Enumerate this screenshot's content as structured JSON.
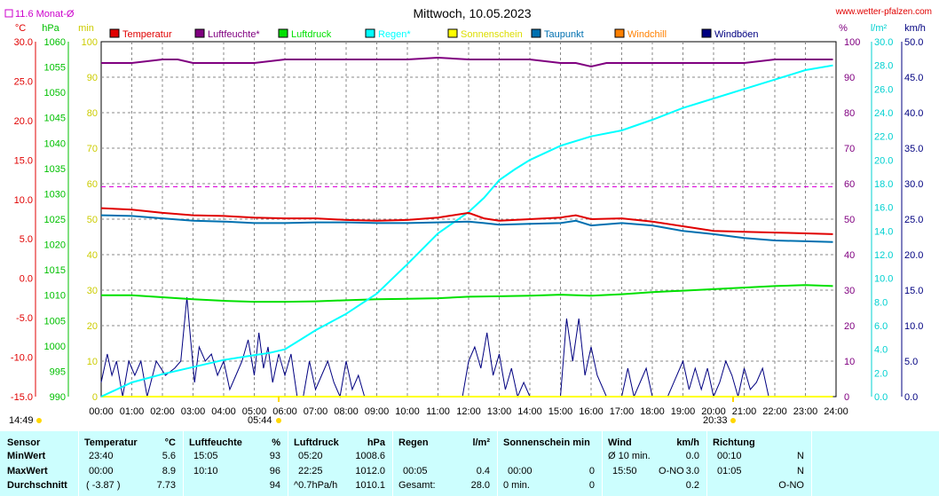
{
  "header": {
    "title": "Mittwoch, 10.05.2023",
    "website": "www.wetter-pfalzen.com",
    "monthly_avg_label": "11.6 Monat-Ø"
  },
  "units_left": [
    "°C",
    "hPa",
    "min"
  ],
  "units_right": [
    "%",
    "l/m²",
    "km/h"
  ],
  "legend": [
    {
      "label": "Temperatur",
      "color": "#e00000"
    },
    {
      "label": "Luftfeuchte*",
      "color": "#800080"
    },
    {
      "label": "Luftdruck",
      "color": "#00e000"
    },
    {
      "label": "Regen*",
      "color": "#00ffff"
    },
    {
      "label": "Sonnenschein",
      "color": "#ffff00"
    },
    {
      "label": "Taupunkt",
      "color": "#0070b0"
    },
    {
      "label": "Windchill",
      "color": "#ff8000"
    },
    {
      "label": "Windböen",
      "color": "#000080"
    }
  ],
  "axis_ticks": {
    "temp": [
      "30.0",
      "25.0",
      "20.0",
      "15.0",
      "10.0",
      "5.0",
      "0.0",
      "-5.0",
      "-10.0",
      "-15.0"
    ],
    "hpa": [
      "1060",
      "1055",
      "1050",
      "1045",
      "1040",
      "1035",
      "1030",
      "1025",
      "1020",
      "1015",
      "1010",
      "1005",
      "1000",
      "995",
      "990"
    ],
    "min": [
      "100",
      "90",
      "80",
      "70",
      "60",
      "50",
      "40",
      "30",
      "20",
      "10",
      "0"
    ],
    "pct": [
      "100",
      "90",
      "80",
      "70",
      "60",
      "50",
      "40",
      "30",
      "20",
      "10",
      "0"
    ],
    "rain": [
      "30.0",
      "28.0",
      "26.0",
      "24.0",
      "22.0",
      "20.0",
      "18.0",
      "16.0",
      "14.0",
      "12.0",
      "10.0",
      "8.0",
      "6.0",
      "4.0",
      "2.0",
      "0.0"
    ],
    "kmh": [
      "50.0",
      "45.0",
      "40.0",
      "35.0",
      "30.0",
      "25.0",
      "20.0",
      "15.0",
      "10.0",
      "5.0",
      "0.0"
    ],
    "time": [
      "00:00",
      "01:00",
      "02:00",
      "03:00",
      "04:00",
      "05:00",
      "06:00",
      "07:00",
      "08:00",
      "09:00",
      "10:00",
      "11:00",
      "12:00",
      "13:00",
      "14:00",
      "15:00",
      "16:00",
      "17:00",
      "18:00",
      "19:00",
      "20:00",
      "21:00",
      "22:00",
      "23:00",
      "24:00"
    ]
  },
  "sun_events": {
    "timezone_label": "14:49",
    "sunrise": "05:44",
    "sunset": "20:33"
  },
  "chart_data": {
    "type": "line",
    "title": "Mittwoch, 10.05.2023",
    "x_range": [
      "00:00",
      "24:00"
    ],
    "grid": true,
    "legend_position": "top",
    "reference_line": {
      "name": "11.6 Monat-Ø",
      "unit": "°C",
      "value": 11.6
    },
    "series": [
      {
        "name": "Temperatur",
        "unit": "°C",
        "axis": "temp",
        "x": [
          0,
          1,
          2,
          3,
          4,
          5,
          6,
          7,
          8,
          9,
          10,
          11,
          12,
          12.5,
          13,
          14,
          15,
          15.5,
          16,
          17,
          18,
          19,
          20,
          21,
          22,
          23,
          23.9
        ],
        "y": [
          8.9,
          8.7,
          8.3,
          8.0,
          7.9,
          7.7,
          7.6,
          7.6,
          7.4,
          7.3,
          7.4,
          7.7,
          8.3,
          7.6,
          7.3,
          7.5,
          7.7,
          8.0,
          7.5,
          7.6,
          7.2,
          6.6,
          6.0,
          5.9,
          5.8,
          5.7,
          5.6
        ]
      },
      {
        "name": "Luftfeuchte*",
        "unit": "%",
        "axis": "pct",
        "x": [
          0,
          1,
          2,
          2.5,
          3,
          4,
          5,
          6,
          7,
          8,
          9,
          10,
          11,
          12,
          13,
          14,
          15,
          15.5,
          16,
          16.5,
          17,
          18,
          19,
          20,
          21,
          22,
          23,
          23.9
        ],
        "y": [
          94,
          94,
          95,
          95,
          94,
          94,
          94,
          95,
          95,
          95,
          95,
          95,
          95.5,
          95,
          95,
          95,
          94,
          94,
          93,
          94,
          94,
          94,
          94,
          94,
          94,
          95,
          95,
          95
        ]
      },
      {
        "name": "Luftdruck",
        "unit": "hPa",
        "axis": "hpa",
        "x": [
          0,
          1,
          2,
          3,
          4,
          5,
          6,
          7,
          8,
          9,
          10,
          11,
          12,
          13,
          14,
          15,
          16,
          17,
          18,
          19,
          20,
          21,
          22,
          23,
          23.9
        ],
        "y": [
          1010.0,
          1010.0,
          1009.6,
          1009.2,
          1008.9,
          1008.7,
          1008.7,
          1008.8,
          1009.0,
          1009.2,
          1009.3,
          1009.4,
          1009.7,
          1009.8,
          1009.9,
          1010.1,
          1009.9,
          1010.2,
          1010.6,
          1010.9,
          1011.2,
          1011.5,
          1011.8,
          1012.0,
          1011.8
        ]
      },
      {
        "name": "Regen*",
        "unit": "l/m²",
        "axis": "rain",
        "x": [
          0,
          0.5,
          1,
          2,
          3,
          4,
          5,
          5.5,
          6,
          6.5,
          7,
          8,
          9,
          10,
          11,
          12,
          12.5,
          13,
          13.5,
          14,
          15,
          16,
          17,
          18,
          19,
          20,
          21,
          22,
          23,
          23.9
        ],
        "y": [
          0,
          0.6,
          1.2,
          1.9,
          2.5,
          3.1,
          3.5,
          3.7,
          4.0,
          4.8,
          5.6,
          7.0,
          8.7,
          11.2,
          13.8,
          15.6,
          16.8,
          18.3,
          19.2,
          20.0,
          21.2,
          22.0,
          22.5,
          23.4,
          24.4,
          25.2,
          26.0,
          26.8,
          27.6,
          28.0
        ]
      },
      {
        "name": "Sonnenschein",
        "unit": "min",
        "axis": "min",
        "x": [
          0,
          23.9
        ],
        "y": [
          0,
          0
        ]
      },
      {
        "name": "Taupunkt",
        "unit": "°C",
        "axis": "temp",
        "x": [
          0,
          1,
          2,
          3,
          4,
          5,
          6,
          7,
          8,
          9,
          10,
          11,
          12,
          12.5,
          13,
          14,
          15,
          15.5,
          16,
          17,
          18,
          19,
          20,
          21,
          22,
          23,
          23.9
        ],
        "y": [
          8.0,
          7.9,
          7.6,
          7.3,
          7.2,
          7.0,
          7.0,
          7.1,
          7.1,
          7.0,
          7.0,
          7.1,
          7.2,
          7.0,
          6.8,
          6.9,
          7.0,
          7.3,
          6.7,
          7.0,
          6.7,
          6.0,
          5.6,
          5.1,
          4.8,
          4.7,
          4.6
        ]
      },
      {
        "name": "Windböen",
        "unit": "km/h",
        "axis": "kmh",
        "x": [
          0,
          0.2,
          0.35,
          0.5,
          0.7,
          0.9,
          1.1,
          1.3,
          1.5,
          1.8,
          2.1,
          2.4,
          2.6,
          2.8,
          2.9,
          3.05,
          3.2,
          3.4,
          3.6,
          3.8,
          4.0,
          4.2,
          4.4,
          4.6,
          4.8,
          5.0,
          5.15,
          5.3,
          5.45,
          5.6,
          5.8,
          6.0,
          6.2,
          6.4,
          6.6,
          6.8,
          7.0,
          7.2,
          7.4,
          7.6,
          7.8,
          8.0,
          8.2,
          8.4,
          8.6,
          9.0,
          11.8,
          12.0,
          12.2,
          12.4,
          12.6,
          12.8,
          13.0,
          13.2,
          13.4,
          13.6,
          13.8,
          14.0,
          15.0,
          15.2,
          15.4,
          15.6,
          15.8,
          16.0,
          16.2,
          16.5,
          17.0,
          17.2,
          17.4,
          17.6,
          17.8,
          18.0,
          18.5,
          19.0,
          19.2,
          19.4,
          19.6,
          19.8,
          20.0,
          20.2,
          20.4,
          20.6,
          20.8,
          21.0,
          21.2,
          21.4,
          21.6,
          21.8,
          22.0
        ],
        "y": [
          2,
          6,
          3,
          5,
          0,
          5,
          3,
          5,
          0,
          5,
          3,
          4,
          5,
          14,
          9,
          2,
          7,
          5,
          6,
          3,
          5,
          1,
          3,
          5,
          8,
          3,
          9,
          4,
          7,
          2,
          6,
          3,
          6,
          0,
          0,
          5,
          1,
          3,
          5,
          2,
          0,
          5,
          1,
          3,
          0,
          0,
          0,
          5,
          7,
          4,
          9,
          3,
          6,
          1,
          4,
          0,
          2,
          0,
          0,
          11,
          5,
          11,
          3,
          7,
          3,
          0,
          0,
          4,
          0,
          2,
          4,
          0,
          0,
          5,
          1,
          4,
          1,
          4,
          0,
          2,
          5,
          3,
          0,
          4,
          1,
          2,
          4,
          0,
          0
        ]
      }
    ]
  },
  "stats": {
    "sensor": {
      "header": "Sensor",
      "rows": [
        "MinWert",
        "MaxWert",
        "Durchschnitt"
      ]
    },
    "temperature": {
      "header": "Temperatur",
      "unit": "°C",
      "rows": [
        [
          "23:40",
          "5.6"
        ],
        [
          "00:00",
          "8.9"
        ],
        [
          "( -3.87 )",
          "7.73"
        ]
      ]
    },
    "humidity": {
      "header": "Luftfeuchte",
      "unit": "%",
      "rows": [
        [
          "15:05",
          "93"
        ],
        [
          "10:10",
          "96"
        ],
        [
          "",
          "94"
        ]
      ]
    },
    "pressure": {
      "header": "Luftdruck",
      "unit": "hPa",
      "rows": [
        [
          "05:20",
          "1008.6"
        ],
        [
          "22:25",
          "1012.0"
        ],
        [
          "^0.7hPa/h",
          "1010.1"
        ]
      ]
    },
    "rain": {
      "header": "Regen",
      "unit": "l/m²",
      "rows": [
        [
          "",
          ""
        ],
        [
          "00:05",
          "0.4"
        ],
        [
          "Gesamt:",
          "28.0"
        ]
      ]
    },
    "sunshine": {
      "header": "Sonnenschein min",
      "rows": [
        [
          "",
          ""
        ],
        [
          "00:00",
          "0"
        ],
        [
          "0 min.",
          "0"
        ]
      ]
    },
    "wind": {
      "header": "Wind",
      "unit": "km/h",
      "rows": [
        [
          "Ø 10 min.",
          "",
          "0.0"
        ],
        [
          "15:50",
          "O-NO",
          "3.0"
        ],
        [
          "",
          "",
          "0.2"
        ]
      ]
    },
    "direction": {
      "header": "Richtung",
      "rows": [
        [
          "00:10",
          "N"
        ],
        [
          "01:05",
          "N"
        ],
        [
          "",
          "O-NO"
        ]
      ]
    }
  }
}
